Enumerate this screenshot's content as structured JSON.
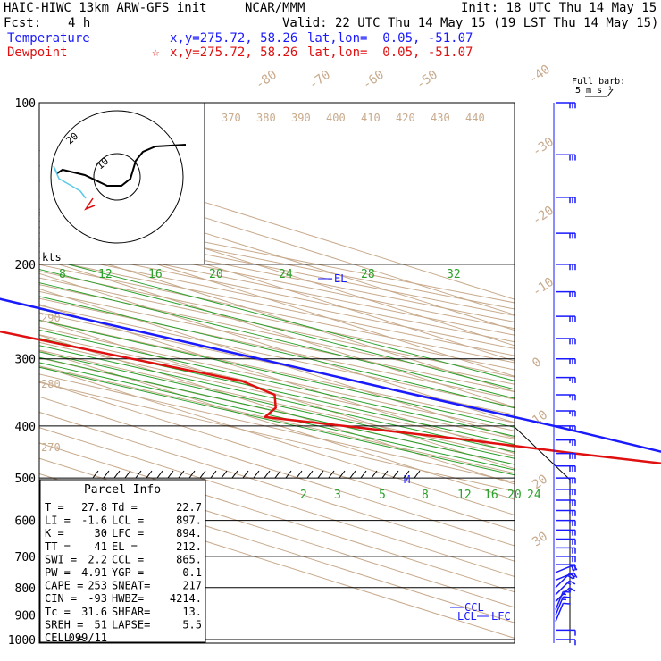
{
  "header": {
    "model": "HAIC-HIWC 13km ARW-GFS init",
    "org": "NCAR/MMM",
    "init": "Init: 18 UTC Thu 14 May 15",
    "fcst_label": "Fcst:",
    "fcst_value": "4 h",
    "valid": "Valid: 22 UTC Thu 14 May 15 (19 LST Thu 14 May 15)"
  },
  "legend": {
    "temperature": {
      "label": "Temperature",
      "xy": "x,y=275.72, 58.26",
      "latlon": "lat,lon=  0.05, -51.07",
      "color": "#1a1aff"
    },
    "dewpoint": {
      "label": "Dewpoint",
      "marker": "☆",
      "xy": "x,y=275.72, 58.26",
      "latlon": "lat,lon=  0.05, -51.07",
      "color": "#e01010"
    }
  },
  "barb_legend": {
    "line1": "Full barb:",
    "line2": "5 m s⁻¹"
  },
  "hodograph": {
    "units": "kts",
    "rings": [
      "10",
      "20"
    ]
  },
  "parcel_info": {
    "title": "Parcel Info",
    "rows": [
      [
        "T  =",
        "27.8",
        "Td =",
        "22.7"
      ],
      [
        "LI =",
        "-1.6",
        "LCL =",
        "897."
      ],
      [
        "K  =",
        "30",
        "LFC =",
        "894."
      ],
      [
        "TT =",
        "41",
        "EL =",
        "212."
      ],
      [
        "SWI =",
        "2.2",
        "CCL =",
        "865."
      ],
      [
        "PW =",
        "4.91",
        "YGP =",
        "0.1"
      ],
      [
        "CAPE =",
        "253",
        "SNEAT=",
        "217"
      ],
      [
        "CIN =",
        "-93",
        "HWBZ=",
        "4214."
      ],
      [
        "Tc =",
        "31.6",
        "SHEAR=",
        "13."
      ],
      [
        "SREH =",
        "51",
        "LAPSE=",
        "5.5"
      ],
      [
        "CELL =",
        "099/11",
        "",
        ""
      ]
    ]
  },
  "chart_data": {
    "type": "line",
    "title": "Skew-T log-P diagram",
    "y_axis": {
      "label": "Pressure (hPa)",
      "scale": "log",
      "ticks": [
        "100",
        "200",
        "300",
        "400",
        "500",
        "600",
        "700",
        "800",
        "900",
        "1000"
      ]
    },
    "isotherm_labels": [
      "-80",
      "-70",
      "-60",
      "-50",
      "-40",
      "-30",
      "-20",
      "-10",
      "0",
      "10",
      "20",
      "30",
      "40"
    ],
    "theta_labels": [
      "370",
      "380",
      "390",
      "400",
      "410",
      "420",
      "430",
      "440"
    ],
    "theta_left_labels": [
      "290",
      "280",
      "270"
    ],
    "mixing_ratio_upper": [
      "8",
      "12",
      "16",
      "20",
      "24",
      "28",
      "32"
    ],
    "mixing_ratio_lower": [
      "2",
      "3",
      "5",
      "8",
      "12",
      "16",
      "20",
      "24"
    ],
    "level_markers": [
      "EL",
      "CCL",
      "LCL",
      "LFC"
    ],
    "freezing_marker": "M",
    "series": [
      {
        "name": "Temperature",
        "color": "#1a1aff",
        "points": [
          [
            1000,
            27.8
          ],
          [
            975,
            25.1
          ],
          [
            950,
            23.9
          ],
          [
            925,
            22.9
          ],
          [
            900,
            20.9
          ],
          [
            850,
            18.3
          ],
          [
            800,
            15.4
          ],
          [
            700,
            9.1
          ],
          [
            600,
            2.1
          ],
          [
            500,
            -4.9
          ],
          [
            450,
            -8.7
          ],
          [
            400,
            -14.2
          ],
          [
            350,
            -22.2
          ],
          [
            300,
            -30.6
          ],
          [
            250,
            -40.8
          ],
          [
            212,
            -48.9
          ],
          [
            200,
            -51.9
          ],
          [
            150,
            -63.4
          ],
          [
            100,
            -75.0
          ]
        ]
      },
      {
        "name": "Dewpoint",
        "color": "#e01010",
        "points": [
          [
            1000,
            22.7
          ],
          [
            975,
            21.5
          ],
          [
            950,
            20.8
          ],
          [
            925,
            19.4
          ],
          [
            900,
            16.9
          ],
          [
            850,
            11.5
          ],
          [
            800,
            6.5
          ],
          [
            700,
            -3.0
          ],
          [
            650,
            -10.7
          ],
          [
            600,
            -14.1
          ],
          [
            550,
            -13.1
          ],
          [
            500,
            -9.6
          ],
          [
            475,
            -13.8
          ],
          [
            450,
            -27.7
          ],
          [
            420,
            -43.5
          ],
          [
            385,
            -67.2
          ],
          [
            370,
            -59.0
          ],
          [
            350,
            -50.8
          ],
          [
            330,
            -48.5
          ],
          [
            300,
            -56.5
          ],
          [
            260,
            -67.6
          ],
          [
            240,
            -78.6
          ],
          [
            230,
            -83.5
          ],
          [
            210,
            -85.5
          ],
          [
            200,
            -87.4
          ],
          [
            150,
            -99.7
          ],
          [
            125,
            -104.1
          ],
          [
            100,
            -110.5
          ]
        ]
      }
    ],
    "wind_barbs": [
      [
        1000,
        "N",
        10
      ],
      [
        960,
        "N",
        10
      ],
      [
        925,
        "NNE",
        10
      ],
      [
        900,
        "NNE",
        15
      ],
      [
        880,
        "NNE",
        15
      ],
      [
        850,
        "NE",
        15
      ],
      [
        825,
        "NE",
        15
      ],
      [
        800,
        "NE",
        20
      ],
      [
        775,
        "ENE",
        20
      ],
      [
        750,
        "ENE",
        20
      ],
      [
        725,
        "E",
        20
      ],
      [
        700,
        "E",
        20
      ],
      [
        675,
        "E",
        20
      ],
      [
        650,
        "E",
        20
      ],
      [
        625,
        "E",
        25
      ],
      [
        600,
        "E",
        25
      ],
      [
        575,
        "E",
        25
      ],
      [
        550,
        "E",
        25
      ],
      [
        525,
        "E",
        30
      ],
      [
        500,
        "E",
        30
      ],
      [
        475,
        "E",
        30
      ],
      [
        450,
        "E",
        30
      ],
      [
        425,
        "E",
        25
      ],
      [
        400,
        "E",
        25
      ],
      [
        375,
        "E",
        25
      ],
      [
        350,
        "E",
        25
      ],
      [
        325,
        "E",
        25
      ],
      [
        300,
        "E",
        30
      ],
      [
        275,
        "E",
        30
      ],
      [
        250,
        "E",
        30
      ],
      [
        225,
        "E",
        30
      ],
      [
        200,
        "E",
        30
      ],
      [
        175,
        "E",
        30
      ],
      [
        150,
        "E",
        30
      ],
      [
        125,
        "E",
        30
      ],
      [
        100,
        "E",
        30
      ]
    ]
  },
  "colors": {
    "isopleth": "#c8aa8c",
    "mixing_ratio": "#2aa02a",
    "temperature": "#1a1aff",
    "dewpoint": "#e01010",
    "barbs": "#1a1aff",
    "grid": "#000000"
  }
}
